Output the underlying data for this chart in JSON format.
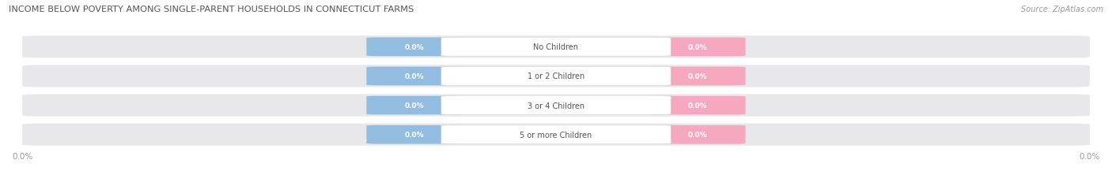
{
  "title": "INCOME BELOW POVERTY AMONG SINGLE-PARENT HOUSEHOLDS IN CONNECTICUT FARMS",
  "source": "Source: ZipAtlas.com",
  "categories": [
    "No Children",
    "1 or 2 Children",
    "3 or 4 Children",
    "5 or more Children"
  ],
  "father_values": [
    0.0,
    0.0,
    0.0,
    0.0
  ],
  "mother_values": [
    0.0,
    0.0,
    0.0,
    0.0
  ],
  "father_color": "#92bce0",
  "mother_color": "#f5a8bf",
  "row_bg_color": "#e8e8eb",
  "category_text_color": "#555555",
  "title_color": "#555555",
  "axis_label_color": "#999999",
  "source_color": "#999999",
  "figsize": [
    14.06,
    2.32
  ],
  "dpi": 100
}
